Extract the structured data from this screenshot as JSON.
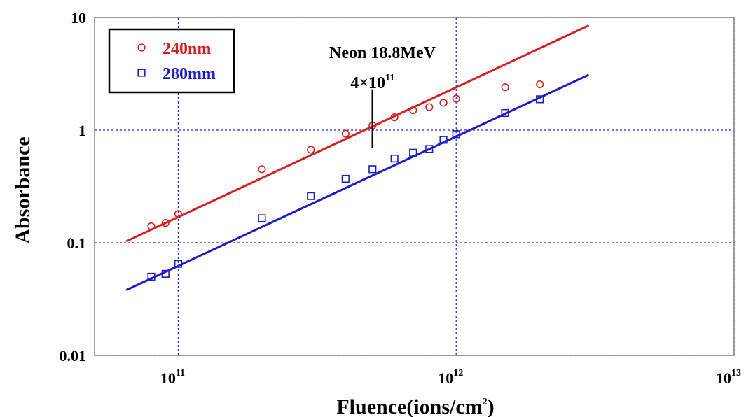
{
  "chart_data": {
    "type": "scatter",
    "xscale": "log",
    "yscale": "log",
    "xlim": [
      50000000000,
      10000000000000
    ],
    "ylim": [
      0.01,
      10
    ],
    "grid": true,
    "legend_position": "top-left",
    "xlabel_main": "Fluence(ions/cm",
    "xlabel_sup": "2",
    "xlabel_end": ")",
    "ylabel": "Absorbance",
    "x_ticks": [
      {
        "value": 100000000000,
        "base": "10",
        "exp": "11"
      },
      {
        "value": 1000000000000,
        "base": "10",
        "exp": "12"
      },
      {
        "value": 10000000000000,
        "base": "10",
        "exp": "13"
      }
    ],
    "y_ticks": [
      {
        "value": 10,
        "label": "10"
      },
      {
        "value": 1,
        "label": "1"
      },
      {
        "value": 0.1,
        "label": "0.1"
      },
      {
        "value": 0.01,
        "label": "0.01"
      }
    ],
    "series": [
      {
        "name": "240nm",
        "color": "#d42020",
        "marker": "circle",
        "x": [
          80000000000,
          90000000000,
          100000000000,
          200000000000,
          300000000000,
          400000000000,
          500000000000,
          600000000000,
          700000000000,
          800000000000,
          900000000000,
          1000000000000,
          1500000000000,
          2000000000000
        ],
        "y": [
          0.14,
          0.15,
          0.18,
          0.45,
          0.67,
          0.93,
          1.1,
          1.3,
          1.5,
          1.6,
          1.75,
          1.9,
          2.4,
          2.55
        ],
        "fit": {
          "x": [
            65000000000,
            3000000000000
          ],
          "y": [
            0.103,
            8.5
          ]
        }
      },
      {
        "name": "280mm",
        "color": "#1b1bc8",
        "marker": "square",
        "x": [
          80000000000,
          90000000000,
          100000000000,
          200000000000,
          300000000000,
          400000000000,
          500000000000,
          600000000000,
          700000000000,
          800000000000,
          900000000000,
          1000000000000,
          1500000000000,
          2000000000000
        ],
        "y": [
          0.05,
          0.053,
          0.065,
          0.165,
          0.26,
          0.37,
          0.45,
          0.56,
          0.63,
          0.68,
          0.82,
          0.92,
          1.42,
          1.88
        ],
        "fit": {
          "x": [
            65000000000,
            3000000000000
          ],
          "y": [
            0.038,
            3.1
          ]
        }
      }
    ],
    "annotation": {
      "title": "Neon 18.8MeV",
      "value_text": "4×10",
      "value_exp": "11",
      "x": 500000000000,
      "y_range": [
        0.7,
        2.3
      ]
    }
  }
}
